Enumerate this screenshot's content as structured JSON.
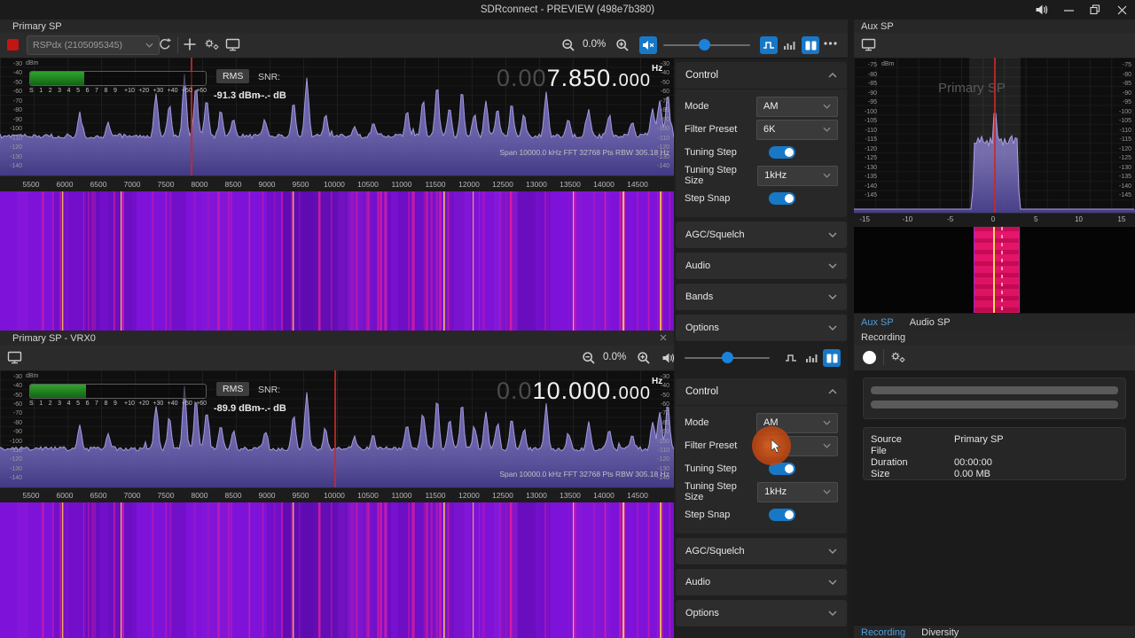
{
  "window": {
    "title": "SDRconnect - PREVIEW (498e7b380)"
  },
  "colors": {
    "accent_blue": "#1878c8",
    "record_red": "#c41414",
    "waterfall_purple": "#7e12d8",
    "aux_column_pink": "#e8156e",
    "spectrum_trace": "#a89fe2",
    "red_line": "#cd2828",
    "smeter_green": "#2fa32f",
    "active_tab_blue": "#4f9fe0"
  },
  "primary_sp": {
    "title": "Primary SP",
    "device": "RSPdx (2105095345)",
    "zoom_percent": "0.0%",
    "rms_label": "RMS",
    "rms_value": "-91.3 dBm",
    "snr_label": "SNR:",
    "snr_value": "--.- dB",
    "dbm_unit": "dBm",
    "freq_dim": "0.00",
    "freq_main": "7.850.",
    "freq_small": "000",
    "freq_unit": "Hz",
    "span_info": "Span 10000.0 kHz FFT 32768 Pts  RBW 305.18 Hz",
    "dbm_ticks": [
      "-30",
      "-40",
      "-50",
      "-60",
      "-70",
      "-80",
      "-90",
      "-100",
      "-110",
      "-120",
      "-130",
      "-140"
    ],
    "smeter_low": [
      "S",
      "1",
      "2",
      "3",
      "4",
      "5",
      "6",
      "7",
      "8",
      "9"
    ],
    "smeter_high": [
      "+10",
      "+20",
      "+30",
      "+40",
      "+50",
      "+60"
    ],
    "freq_ticks": [
      "5500",
      "6000",
      "6500",
      "7000",
      "7500",
      "8000",
      "8500",
      "9000",
      "9500",
      "10000",
      "10500",
      "11000",
      "11500",
      "12000",
      "12500",
      "13000",
      "13500",
      "14000",
      "14500"
    ]
  },
  "vrx0": {
    "title": "Primary SP - VRX0",
    "zoom_percent": "0.0%",
    "rms_label": "RMS",
    "rms_value": "-89.9 dBm",
    "snr_label": "SNR:",
    "snr_value": "--.- dB",
    "dbm_unit": "dBm",
    "freq_dim": "0.0",
    "freq_main": "10.000.",
    "freq_small": "000",
    "freq_unit": "Hz",
    "span_info": "Span 10000.0 kHz FFT 32768 Pts  RBW 305.18 Hz",
    "dbm_ticks": [
      "-30",
      "-40",
      "-50",
      "-60",
      "-70",
      "-80",
      "-90",
      "-100",
      "-110",
      "-120",
      "-130",
      "-140"
    ],
    "smeter_low": [
      "S",
      "1",
      "2",
      "3",
      "4",
      "5",
      "6",
      "7",
      "8",
      "9"
    ],
    "smeter_high": [
      "+10",
      "+20",
      "+30",
      "+40",
      "+50",
      "+60"
    ],
    "freq_ticks": [
      "5500",
      "6000",
      "6500",
      "7000",
      "7500",
      "8000",
      "8500",
      "9000",
      "9500",
      "10000",
      "10500",
      "11000",
      "11500",
      "12000",
      "12500",
      "13000",
      "13500",
      "14000",
      "14500"
    ]
  },
  "control1": {
    "header": "Control",
    "mode_label": "Mode",
    "mode_value": "AM",
    "filter_label": "Filter Preset",
    "filter_value": "6K",
    "tuning_step_label": "Tuning Step",
    "tuning_step_size_label": "Tuning Step Size",
    "tuning_step_size_value": "1kHz",
    "step_snap_label": "Step Snap",
    "collapsed": [
      "AGC/Squelch",
      "Audio",
      "Bands",
      "Options"
    ]
  },
  "control2": {
    "header": "Control",
    "mode_label": "Mode",
    "mode_value": "AM",
    "filter_label": "Filter Preset",
    "filter_value": "6K",
    "tuning_step_label": "Tuning Step",
    "tuning_step_size_label": "Tuning Step Size",
    "tuning_step_size_value": "1kHz",
    "step_snap_label": "Step Snap",
    "collapsed": [
      "AGC/Squelch",
      "Audio",
      "Options"
    ]
  },
  "aux_sp": {
    "title": "Aux SP",
    "watermark": "Primary SP",
    "dbm_unit": "dBm",
    "dbm_ticks": [
      "-75",
      "-80",
      "-85",
      "-90",
      "-95",
      "-100",
      "-105",
      "-110",
      "-115",
      "-120",
      "-125",
      "-130",
      "-135",
      "-140",
      "-145"
    ],
    "x_ticks": [
      "-15",
      "-10",
      "-5",
      "0",
      "5",
      "10",
      "15"
    ],
    "tabs": [
      {
        "label": "Aux SP"
      },
      {
        "label": "Audio SP"
      }
    ]
  },
  "recording": {
    "title": "Recording",
    "fields": [
      [
        "Source",
        "Primary SP"
      ],
      [
        "File",
        ""
      ],
      [
        "Duration",
        "00:00:00"
      ],
      [
        "Size",
        "0.00 MB"
      ]
    ],
    "tabs": [
      {
        "label": "Recording"
      },
      {
        "label": "Diversity"
      }
    ]
  }
}
